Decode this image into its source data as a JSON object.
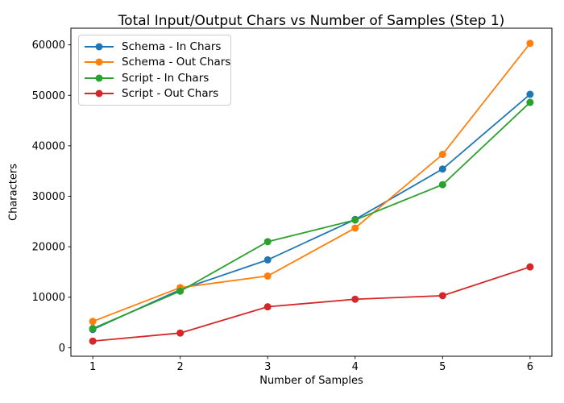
{
  "figure": {
    "background": "#ffffff"
  },
  "chart_data": {
    "type": "line",
    "title": "Total Input/Output Chars vs Number of Samples (Step 1)",
    "xlabel": "Number of Samples",
    "ylabel": "Characters",
    "x": [
      1,
      2,
      3,
      4,
      5,
      6
    ],
    "xtick_labels": [
      "1",
      "2",
      "3",
      "4",
      "5",
      "6"
    ],
    "yticks": [
      0,
      10000,
      20000,
      30000,
      40000,
      50000,
      60000
    ],
    "ytick_labels": [
      "0",
      "10000",
      "20000",
      "30000",
      "40000",
      "50000",
      "60000"
    ],
    "xlim": [
      0.75,
      6.25
    ],
    "ylim": [
      -1700,
      63300
    ],
    "grid": false,
    "legend_position": "upper-left",
    "series": [
      {
        "name": "Schema - In Chars",
        "color": "#1f77b4",
        "values": [
          3600,
          11500,
          17400,
          25400,
          35400,
          50200
        ]
      },
      {
        "name": "Schema - Out Chars",
        "color": "#ff7f0e",
        "values": [
          5200,
          11900,
          14200,
          23700,
          38300,
          60300
        ]
      },
      {
        "name": "Script - In Chars",
        "color": "#2ca02c",
        "values": [
          3800,
          11200,
          21000,
          25300,
          32300,
          48600
        ]
      },
      {
        "name": "Script - Out Chars",
        "color": "#d62728",
        "values": [
          1300,
          2900,
          8100,
          9600,
          10300,
          16000
        ]
      }
    ]
  }
}
